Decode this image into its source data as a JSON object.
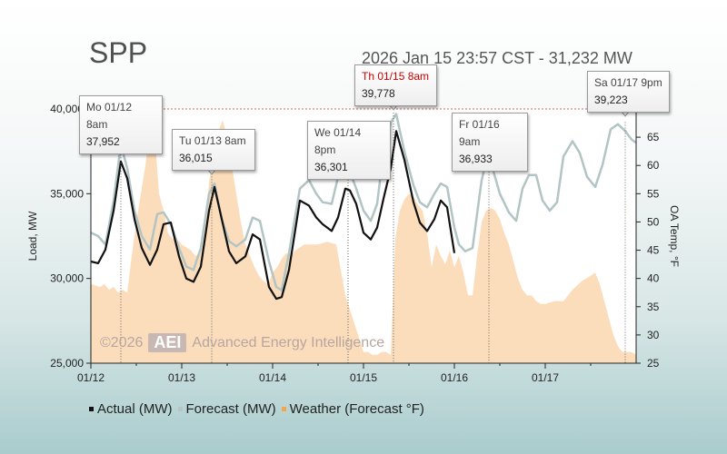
{
  "title": "SPP",
  "subtitle": "2026 Jan 15 23:57 CST - 31,232 MW",
  "watermark": {
    "year": "©2026",
    "logo": "AEI",
    "company": "Advanced Energy Intelligence"
  },
  "legend": [
    {
      "label": "Actual (MW)",
      "color": "#111111"
    },
    {
      "label": "Forecast (MW)",
      "color": "#b6c6c6"
    },
    {
      "label": "Weather (Forecast °F)",
      "color": "#f6a54a"
    }
  ],
  "tooltips": [
    {
      "date": "Mo 01/12 8am",
      "value": "37,952",
      "highlight": false
    },
    {
      "date": "Tu 01/13 8am",
      "value": "36,015",
      "highlight": false
    },
    {
      "date": "We 01/14 8pm",
      "value": "36,301",
      "highlight": false
    },
    {
      "date": "Th 01/15 8am",
      "value": "39,778",
      "highlight": true
    },
    {
      "date": "Fr 01/16 9am",
      "value": "36,933",
      "highlight": false
    },
    {
      "date": "Sa 01/17 9pm",
      "value": "39,223",
      "highlight": false
    }
  ],
  "chart_data": {
    "type": "line",
    "xlabel": "",
    "ylabel": "Load, MW",
    "y2label": "OA Temp, °F",
    "xlim": [
      0,
      6
    ],
    "ylim": [
      25000,
      40000
    ],
    "y2lim": [
      25,
      70
    ],
    "x_ticks": [
      "01/12",
      "01/13",
      "01/14",
      "01/15",
      "01/16",
      "01/17"
    ],
    "y_ticks": [
      "25,000",
      "30,000",
      "35,000",
      "40,000"
    ],
    "y2_ticks": [
      "25",
      "30",
      "35",
      "40",
      "45",
      "50",
      "55",
      "60",
      "65"
    ],
    "series": [
      {
        "name": "Actual (MW)",
        "x": [
          0,
          0.08,
          0.16,
          0.25,
          0.33,
          0.4,
          0.48,
          0.56,
          0.65,
          0.73,
          0.8,
          0.88,
          0.97,
          1.05,
          1.13,
          1.21,
          1.3,
          1.36,
          1.44,
          1.52,
          1.6,
          1.7,
          1.78,
          1.86,
          1.96,
          2.04,
          2.1,
          2.18,
          2.3,
          2.4,
          2.48,
          2.55,
          2.65,
          2.72,
          2.8,
          2.85,
          2.92,
          3.0,
          3.08,
          3.15,
          3.22,
          3.3,
          3.36,
          3.45,
          3.55,
          3.62,
          3.7,
          3.78,
          3.85,
          3.92,
          4.0
        ],
        "values": [
          31000,
          30900,
          31700,
          34000,
          36900,
          35900,
          33500,
          31800,
          30800,
          31700,
          33200,
          33300,
          31300,
          30000,
          29800,
          30700,
          34000,
          35400,
          33500,
          31600,
          30900,
          31300,
          32600,
          32300,
          29500,
          28800,
          28900,
          30500,
          34600,
          34300,
          33600,
          33200,
          32800,
          33600,
          35300,
          35200,
          34400,
          32700,
          32300,
          33000,
          34700,
          36500,
          38700,
          37000,
          34500,
          33300,
          32800,
          33500,
          34600,
          34200,
          31500
        ]
      },
      {
        "name": "Forecast (MW)",
        "x": [
          0,
          0.08,
          0.16,
          0.25,
          0.33,
          0.4,
          0.48,
          0.56,
          0.65,
          0.73,
          0.8,
          0.88,
          0.97,
          1.05,
          1.13,
          1.21,
          1.3,
          1.36,
          1.44,
          1.52,
          1.6,
          1.7,
          1.78,
          1.86,
          1.96,
          2.04,
          2.1,
          2.18,
          2.3,
          2.4,
          2.48,
          2.55,
          2.65,
          2.72,
          2.8,
          2.85,
          2.92,
          3.0,
          3.08,
          3.15,
          3.22,
          3.3,
          3.36,
          3.45,
          3.55,
          3.62,
          3.7,
          3.78,
          3.85,
          3.92,
          4.0,
          4.05,
          4.12,
          4.2,
          4.3,
          4.35,
          4.42,
          4.5,
          4.6,
          4.68,
          4.75,
          4.82,
          4.9,
          4.97,
          5.05,
          5.13,
          5.2,
          5.3,
          5.38,
          5.46,
          5.55,
          5.63,
          5.72,
          5.8,
          5.88,
          5.95,
          6.0
        ],
        "values": [
          32700,
          32500,
          32000,
          34600,
          37900,
          36500,
          34000,
          32500,
          31700,
          33800,
          33900,
          33200,
          31800,
          30700,
          30500,
          31800,
          35000,
          35600,
          33500,
          32200,
          31900,
          32300,
          33600,
          33400,
          31000,
          29500,
          29300,
          31500,
          35300,
          35800,
          35000,
          34500,
          34400,
          36000,
          36300,
          36300,
          35300,
          34000,
          33400,
          34400,
          37500,
          39200,
          39700,
          37500,
          35500,
          34500,
          34200,
          35000,
          35600,
          35400,
          33000,
          32000,
          31600,
          31800,
          35800,
          36900,
          36500,
          35000,
          33900,
          33400,
          35300,
          36100,
          36100,
          34600,
          34000,
          34500,
          37200,
          38100,
          37400,
          36000,
          35400,
          36700,
          38800,
          39100,
          38700,
          38200,
          38000
        ]
      },
      {
        "name": "Weather (Forecast °F)",
        "type": "area",
        "x": [
          0,
          0.1,
          0.15,
          0.2,
          0.25,
          0.3,
          0.35,
          0.4,
          0.45,
          0.5,
          0.55,
          0.6,
          0.65,
          0.7,
          0.75,
          0.8,
          0.85,
          0.9,
          0.95,
          1.0,
          1.05,
          1.1,
          1.15,
          1.2,
          1.25,
          1.3,
          1.35,
          1.4,
          1.45,
          1.5,
          1.55,
          1.6,
          1.65,
          1.7,
          1.75,
          1.8,
          1.85,
          1.9,
          1.95,
          2.0,
          2.05,
          2.1,
          2.15,
          2.2,
          2.25,
          2.3,
          2.35,
          2.4,
          2.5,
          2.6,
          2.7,
          2.8,
          2.9,
          3.0,
          3.05,
          3.1,
          3.15,
          3.2,
          3.25,
          3.3,
          3.35,
          3.4,
          3.45,
          3.5,
          3.55,
          3.6,
          3.65,
          3.7,
          3.75,
          3.8,
          3.85,
          3.9,
          3.95,
          4.0,
          4.05,
          4.1,
          4.15,
          4.2,
          4.25,
          4.3,
          4.35,
          4.4,
          4.45,
          4.5,
          4.55,
          4.6,
          4.65,
          4.7,
          4.75,
          4.8,
          4.85,
          4.9,
          4.95,
          5.0,
          5.1,
          5.2,
          5.3,
          5.4,
          5.5,
          5.55,
          5.6,
          5.65,
          5.7,
          5.75,
          5.8,
          5.85,
          5.9,
          5.95,
          6.0
        ],
        "values": [
          39,
          38.5,
          39,
          38,
          38.5,
          37.5,
          38,
          37.5,
          44,
          50,
          55,
          60,
          67,
          66,
          55,
          52,
          48,
          47,
          47,
          46,
          45.5,
          45,
          44,
          44.5,
          48,
          57,
          62,
          66,
          68,
          65,
          60,
          55,
          50,
          46,
          44,
          42,
          40.5,
          39.5,
          39,
          41,
          42,
          43.5,
          44.5,
          44,
          45,
          45.5,
          46,
          46,
          46,
          46.5,
          46,
          37,
          32,
          27,
          27,
          26.5,
          26.5,
          27,
          27,
          26.5,
          47,
          52,
          54,
          55,
          54.5,
          53,
          52,
          48,
          42,
          46,
          44,
          42.5,
          45,
          42,
          44,
          41,
          37,
          37,
          44,
          50,
          52,
          52.5,
          52,
          50.5,
          48,
          46,
          43,
          40,
          38,
          37,
          37,
          36,
          35.5,
          35.5,
          36,
          36,
          38,
          39.5,
          40.5,
          41,
          39,
          36,
          33,
          30,
          28,
          27,
          27,
          27,
          26.5
        ]
      }
    ],
    "annotations": [
      {
        "x": 0.33,
        "value": 37952,
        "label": "Mo 01/12 8am"
      },
      {
        "x": 1.33,
        "value": 36015,
        "label": "Tu 01/13 8am"
      },
      {
        "x": 2.83,
        "value": 36301,
        "label": "We 01/14 8pm"
      },
      {
        "x": 3.33,
        "value": 39778,
        "label": "Th 01/15 8am"
      },
      {
        "x": 4.38,
        "value": 36933,
        "label": "Fr 01/16 9am"
      },
      {
        "x": 5.88,
        "value": 39223,
        "label": "Sa 01/17 9pm"
      }
    ]
  }
}
